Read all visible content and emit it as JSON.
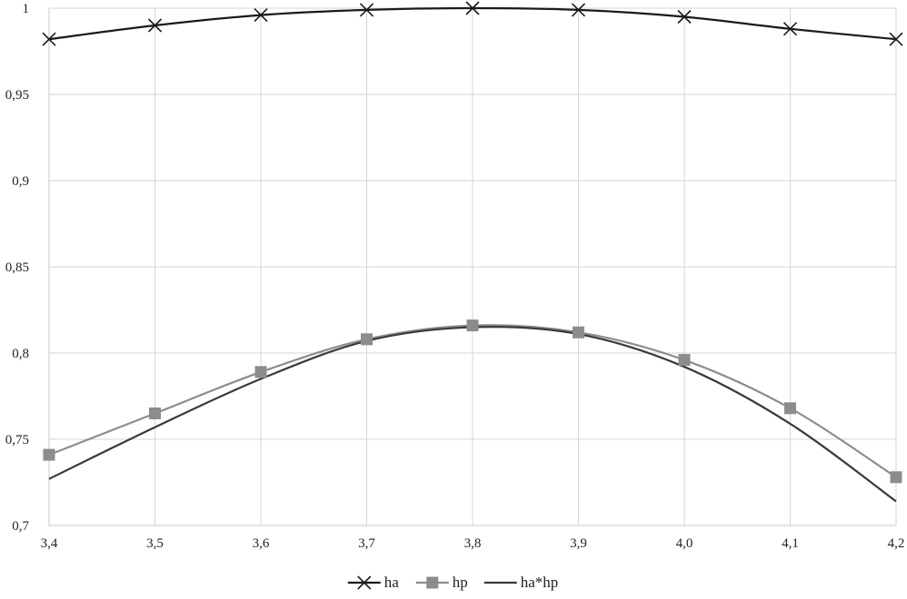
{
  "chart_data": {
    "type": "line",
    "x": [
      3.4,
      3.5,
      3.6,
      3.7,
      3.8,
      3.9,
      4.0,
      4.1,
      4.2
    ],
    "x_tick_labels": [
      "3,4",
      "3,5",
      "3,6",
      "3,7",
      "3,8",
      "3,9",
      "4,0",
      "4,1",
      "4,2"
    ],
    "y_ticks": [
      0.7,
      0.75,
      0.8,
      0.85,
      0.9,
      0.95,
      1
    ],
    "y_tick_labels": [
      "0,7",
      "0,75",
      "0,8",
      "0,85",
      "0,9",
      "0,95",
      "1"
    ],
    "ylim": [
      0.7,
      1
    ],
    "xlim": [
      3.4,
      4.2
    ],
    "grid": true,
    "legend_position": "bottom",
    "series": [
      {
        "name": "ha",
        "values": [
          0.982,
          0.99,
          0.996,
          0.999,
          1.0,
          0.999,
          0.995,
          0.988,
          0.982
        ],
        "color": "#1a1a1a",
        "marker": "x"
      },
      {
        "name": "hp",
        "values": [
          0.741,
          0.765,
          0.789,
          0.808,
          0.816,
          0.812,
          0.796,
          0.768,
          0.728
        ],
        "color": "#8c8c8c",
        "marker": "square"
      },
      {
        "name": "ha*hp",
        "values": [
          0.727,
          0.757,
          0.785,
          0.807,
          0.815,
          0.811,
          0.792,
          0.759,
          0.714
        ],
        "color": "#3a3a3a",
        "marker": "none"
      }
    ]
  }
}
